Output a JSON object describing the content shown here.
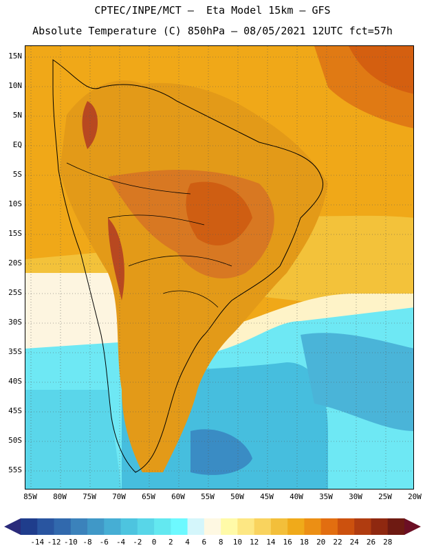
{
  "header": {
    "line1": "CPTEC/INPE/MCT –  Eta Model 15km – GFS",
    "line2": "Absolute Temperature (C) 850hPa – 08/05/2021 12UTC fct=57h"
  },
  "map": {
    "lat_labels": [
      "15N",
      "10N",
      "5N",
      "EQ",
      "5S",
      "10S",
      "15S",
      "20S",
      "25S",
      "30S",
      "35S",
      "40S",
      "45S",
      "50S",
      "55S"
    ],
    "lon_labels": [
      "85W",
      "80W",
      "75W",
      "70W",
      "65W",
      "60W",
      "55W",
      "50W",
      "45W",
      "40W",
      "35W",
      "30W",
      "25W",
      "20W"
    ],
    "lat_range": [
      17,
      -58
    ],
    "lon_range": [
      -86,
      -20
    ],
    "gridlines": "dotted",
    "colors": {
      "sea_warm": "#f0a818",
      "land_hot": "#d8701c",
      "land_hottest": "#b84820",
      "cool_cream": "#fdf5e0",
      "cool_cyan": "#5ae6f0",
      "cold_blue": "#3aa8d0",
      "coast_line": "#000000"
    }
  },
  "colorbar": {
    "labels": [
      "-14",
      "-12",
      "-10",
      "-8",
      "-6",
      "-4",
      "-2",
      "0",
      "2",
      "4",
      "6",
      "8",
      "10",
      "12",
      "14",
      "16",
      "18",
      "20",
      "22",
      "24",
      "26",
      "28"
    ],
    "colors": [
      "#1f3d8c",
      "#2955a0",
      "#3169ad",
      "#3b82bb",
      "#4098c7",
      "#46aed4",
      "#4dc4df",
      "#58d6e8",
      "#63e8f0",
      "#6df9ff",
      "#d4f6fb",
      "#fef8e2",
      "#fffaa8",
      "#fde783",
      "#f9d35e",
      "#f3bf3a",
      "#f0aa1a",
      "#ec8f14",
      "#e26e10",
      "#cc510e",
      "#b03c10",
      "#8f2810",
      "#6e1a12"
    ],
    "left_arrow": "#2a2a7a",
    "right_arrow": "#6b0f24"
  }
}
